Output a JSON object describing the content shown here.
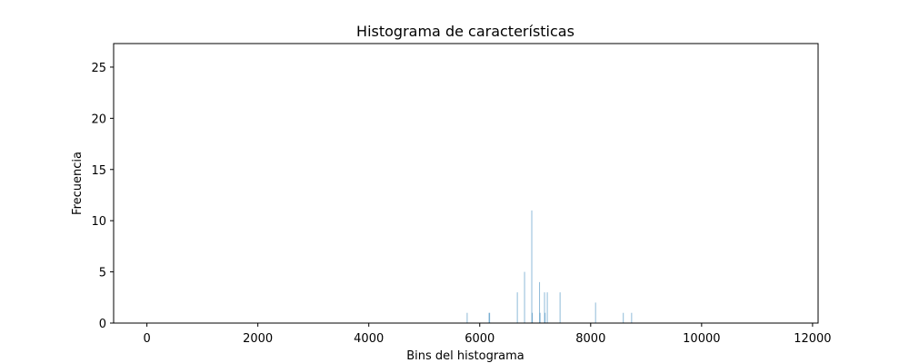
{
  "chart_data": {
    "type": "bar",
    "title": "Histograma de características",
    "xlabel": "Bins del histograma",
    "ylabel": "Frecuencia",
    "xlim": [
      -600,
      12100
    ],
    "ylim": [
      0,
      27.3
    ],
    "xticks": [
      0,
      2000,
      4000,
      6000,
      8000,
      10000,
      12000
    ],
    "yticks": [
      0,
      5,
      10,
      15,
      20,
      25
    ],
    "grid": false,
    "bar_color": "#1f77b4",
    "bar_width": 14,
    "x": [
      5765,
      6160,
      6170,
      6670,
      6800,
      6930,
      6940,
      7070,
      7080,
      7160,
      7170,
      7210,
      7440,
      8080,
      8580,
      8730
    ],
    "values": [
      1,
      1,
      1,
      3,
      5,
      11,
      1,
      4,
      1,
      3,
      1,
      3,
      3,
      2,
      1,
      1
    ]
  }
}
